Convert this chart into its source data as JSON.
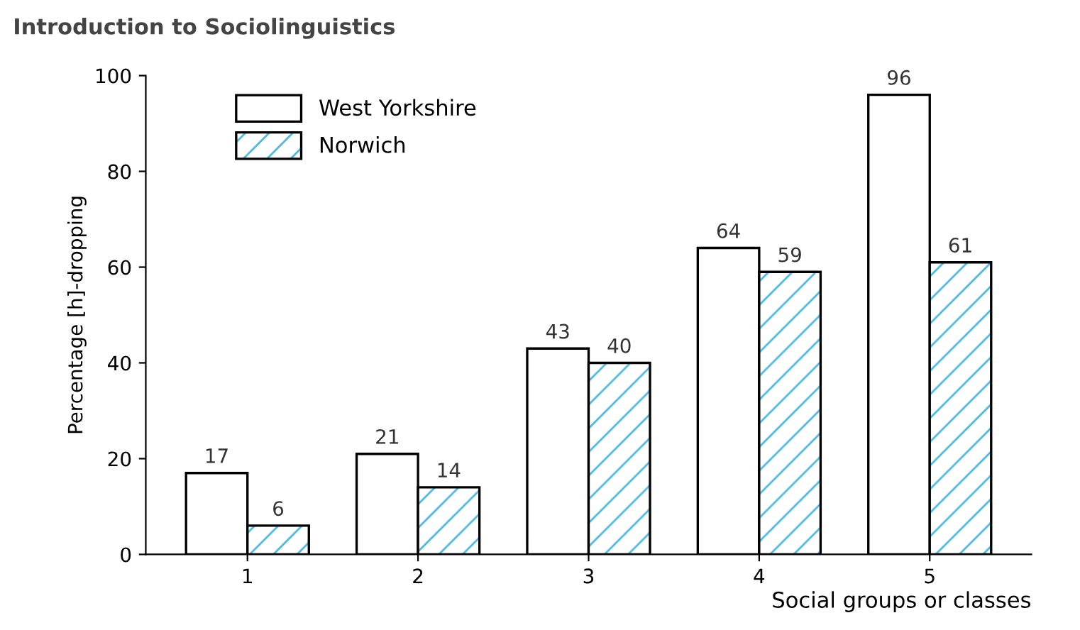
{
  "chart_data": {
    "type": "bar",
    "title": "Introduction to Sociolinguistics",
    "xlabel": "Social groups or classes",
    "ylabel": "Percentage [h]-dropping",
    "categories": [
      "1",
      "2",
      "3",
      "4",
      "5"
    ],
    "series": [
      {
        "name": "West Yorkshire",
        "color": "#ffffff",
        "values": [
          17,
          21,
          43,
          64,
          96
        ]
      },
      {
        "name": "Norwich",
        "color": "#4fb8dc",
        "values": [
          6,
          14,
          40,
          59,
          61
        ]
      }
    ],
    "ylim": [
      0,
      100
    ],
    "yticks": [
      0,
      20,
      40,
      60,
      80,
      100
    ],
    "grid": false,
    "legend": "top left",
    "data_labels": true
  }
}
